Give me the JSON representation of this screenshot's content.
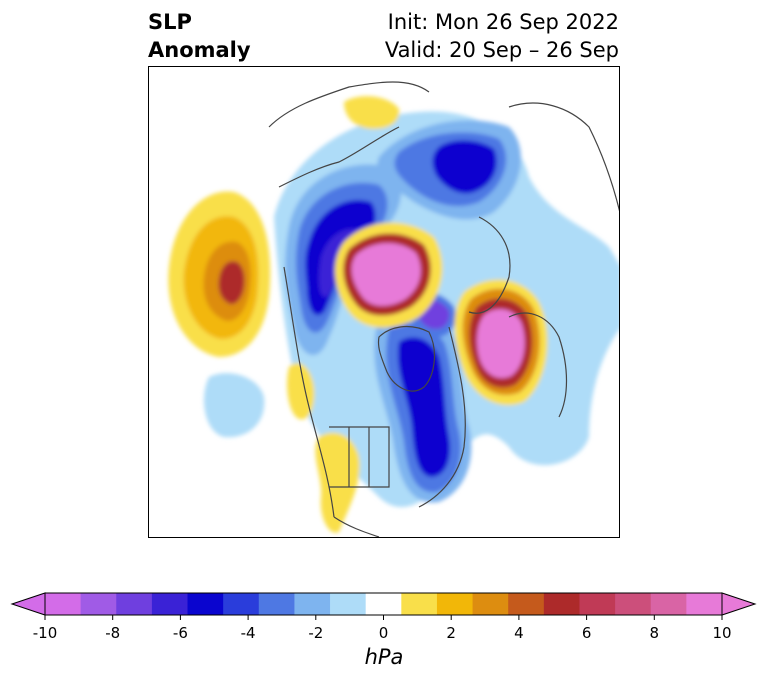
{
  "header": {
    "title_line1": "SLP",
    "title_line2": "Anomaly",
    "init_label": "Init: Mon 26 Sep 2022",
    "valid_label": "Valid: 20 Sep – 26 Sep"
  },
  "colorbar": {
    "unit": "hPa",
    "tick_labels": [
      "-10",
      "-8",
      "-6",
      "-4",
      "-2",
      "0",
      "2",
      "4",
      "6",
      "8",
      "10"
    ],
    "colors": [
      "#d36ce8",
      "#a05be6",
      "#6f3fdf",
      "#3a22d6",
      "#0a05cf",
      "#2a3ddb",
      "#4e78e3",
      "#7eb4ef",
      "#aedcf8",
      "#ffffff",
      "#f9df4a",
      "#f2b708",
      "#dd8d10",
      "#c55a1c",
      "#ad2a2a",
      "#c03a56",
      "#cc4f7b",
      "#d964a5",
      "#e77ad8"
    ],
    "extend": "both",
    "extend_min_color": "#d36ce8",
    "extend_max_color": "#e77ad8"
  },
  "map": {
    "projection": "north-polar-stereographic",
    "field": "sea-level-pressure-anomaly",
    "coastline_color": "#444444"
  }
}
